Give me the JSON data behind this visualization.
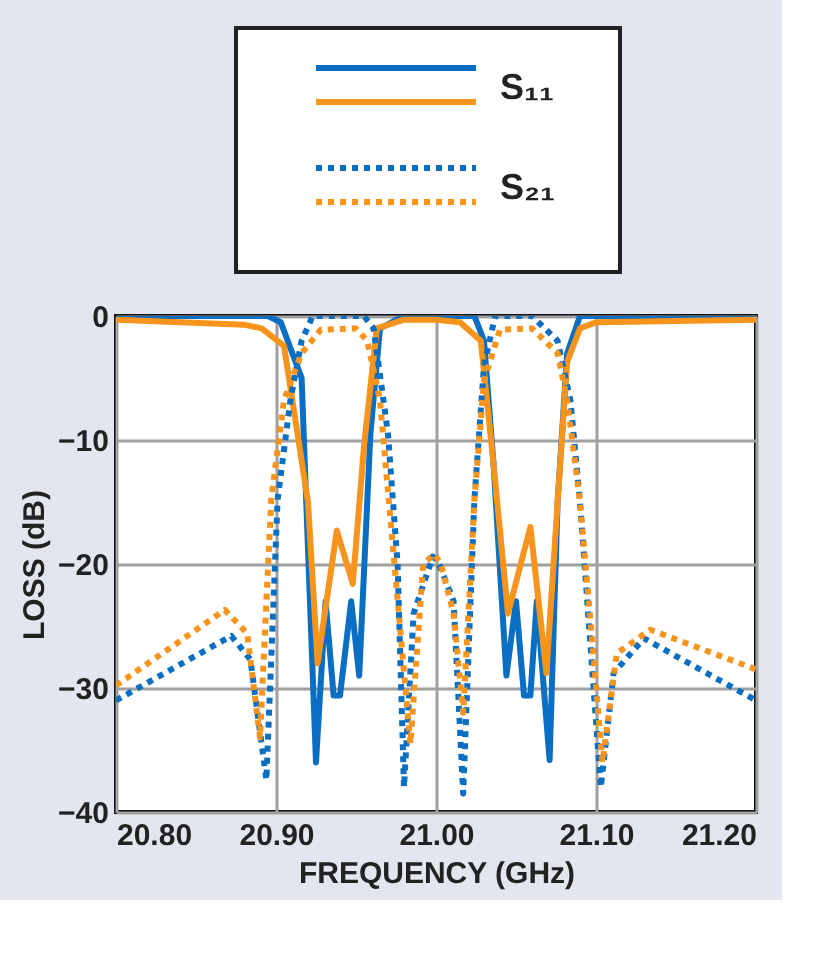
{
  "chart_data": {
    "type": "line",
    "xlabel": "FREQUENCY (GHz)",
    "ylabel": "LOSS (dB)",
    "xlim": [
      20.8,
      21.2
    ],
    "xticks": [
      {
        "value": 20.8,
        "label": "20.80"
      },
      {
        "value": 20.9,
        "label": "20.90"
      },
      {
        "value": 21.0,
        "label": "21.00"
      },
      {
        "value": 21.1,
        "label": "21.10"
      },
      {
        "value": 21.2,
        "label": "21.20"
      }
    ],
    "ylim": [
      -40,
      0
    ],
    "yticks": [
      -40,
      -30,
      -20,
      -10,
      0
    ],
    "grid": true,
    "legend": "top",
    "series": [
      {
        "name": "S₁₁",
        "color": "#0a6fc2",
        "line_style": "solid",
        "x": [
          20.8,
          20.88,
          20.895,
          20.903,
          20.916,
          20.925,
          20.931,
          20.936,
          20.94,
          20.947,
          20.952,
          20.959,
          20.965,
          20.98,
          21.01,
          21.024,
          21.03,
          21.036,
          21.044,
          21.05,
          21.055,
          21.059,
          21.063,
          21.071,
          21.076,
          21.082,
          21.09,
          21.12,
          21.2
        ],
        "values": [
          0,
          0,
          0,
          -0.5,
          -5,
          -36,
          -23,
          -30.6,
          -30.6,
          -23,
          -29,
          -9.5,
          -1,
          0,
          0,
          0,
          -2,
          -12,
          -29,
          -23,
          -30.6,
          -30.6,
          -23,
          -35.8,
          -15,
          -3,
          0,
          0,
          0
        ]
      },
      {
        "color": "#f7941d",
        "line_style": "solid",
        "x": [
          20.8,
          20.88,
          20.891,
          20.905,
          20.92,
          20.926,
          20.938,
          20.948,
          20.955,
          20.963,
          20.98,
          21.0,
          21.015,
          21.028,
          21.036,
          21.045,
          21.059,
          21.069,
          21.076,
          21.082,
          21.09,
          21.1,
          21.2
        ],
        "values": [
          -0.3,
          -0.7,
          -1,
          -2.4,
          -15,
          -28,
          -17.3,
          -21.6,
          -10.5,
          -1,
          -0.3,
          -0.3,
          -0.5,
          -2,
          -12,
          -24,
          -17,
          -28.8,
          -15,
          -3.7,
          -1,
          -0.5,
          -0.3
        ]
      },
      {
        "name": "S₂₁",
        "color": "#0a6fc2",
        "line_style": "dotted",
        "x": [
          20.8,
          20.872,
          20.884,
          20.894,
          20.901,
          20.909,
          20.916,
          20.923,
          20.955,
          20.961,
          20.97,
          20.976,
          20.98,
          20.986,
          20.998,
          21.001,
          21.011,
          21.017,
          21.024,
          21.03,
          21.037,
          21.06,
          21.076,
          21.084,
          21.09,
          21.096,
          21.103,
          21.111,
          21.13,
          21.2
        ],
        "values": [
          -31,
          -25.8,
          -27.7,
          -37.4,
          -14.8,
          -6.8,
          -2,
          0,
          0,
          -1,
          -9.5,
          -20,
          -38,
          -24,
          -19.4,
          -19.7,
          -23,
          -38.5,
          -14.8,
          -4,
          0,
          0,
          -2,
          -6.8,
          -15,
          -25.6,
          -38,
          -28.8,
          -26,
          -31
        ]
      },
      {
        "color": "#f7941d",
        "line_style": "dotted",
        "x": [
          20.8,
          20.868,
          20.882,
          20.89,
          20.897,
          20.905,
          20.916,
          20.928,
          20.95,
          20.957,
          20.965,
          20.974,
          20.984,
          20.992,
          20.999,
          21.003,
          21.011,
          21.017,
          21.024,
          21.03,
          21.04,
          21.06,
          21.076,
          21.082,
          21.09,
          21.098,
          21.104,
          21.113,
          21.134,
          21.2
        ],
        "values": [
          -29.8,
          -23.7,
          -25.6,
          -34,
          -14.8,
          -6.8,
          -3,
          -1.1,
          -1,
          -2,
          -6.8,
          -20,
          -34.5,
          -20,
          -19.2,
          -20,
          -24,
          -32,
          -14.8,
          -5.2,
          -1.1,
          -1,
          -3,
          -6.8,
          -15,
          -26.7,
          -36,
          -27.2,
          -25.3,
          -28.5
        ]
      }
    ]
  }
}
